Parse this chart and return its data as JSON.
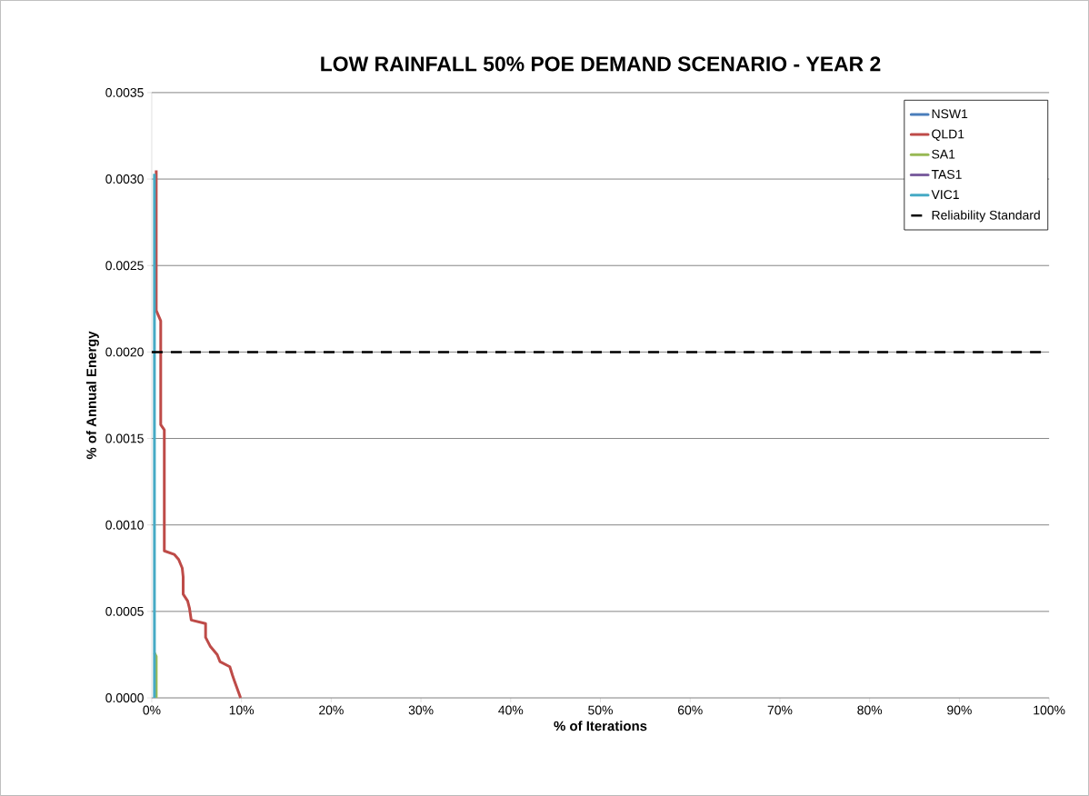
{
  "chart_data": {
    "type": "line",
    "title": "LOW RAINFALL 50% POE DEMAND SCENARIO - YEAR 2",
    "xlabel": "% of Iterations",
    "ylabel": "% of Annual Energy",
    "xlim": [
      0,
      100
    ],
    "ylim": [
      0,
      0.0035
    ],
    "xticks": [
      {
        "value": 0,
        "label": "0%"
      },
      {
        "value": 10,
        "label": "10%"
      },
      {
        "value": 20,
        "label": "20%"
      },
      {
        "value": 30,
        "label": "30%"
      },
      {
        "value": 40,
        "label": "40%"
      },
      {
        "value": 50,
        "label": "50%"
      },
      {
        "value": 60,
        "label": "60%"
      },
      {
        "value": 70,
        "label": "70%"
      },
      {
        "value": 80,
        "label": "80%"
      },
      {
        "value": 90,
        "label": "90%"
      },
      {
        "value": 100,
        "label": "100%"
      }
    ],
    "yticks": [
      {
        "value": 0,
        "label": "0.0000"
      },
      {
        "value": 0.0005,
        "label": "0.0005"
      },
      {
        "value": 0.001,
        "label": "0.0010"
      },
      {
        "value": 0.0015,
        "label": "0.0015"
      },
      {
        "value": 0.002,
        "label": "0.0020"
      },
      {
        "value": 0.0025,
        "label": "0.0025"
      },
      {
        "value": 0.003,
        "label": "0.0030"
      },
      {
        "value": 0.0035,
        "label": "0.0035"
      }
    ],
    "grid": "y",
    "legend": "top right",
    "marker": "none",
    "line_style": "solid",
    "series": [
      {
        "name": "NSW1",
        "color": "#4a7ebb"
      },
      {
        "name": "QLD1",
        "color": "#be4b48",
        "x": [
          0.5,
          0.5,
          1.0,
          1.0,
          1.4,
          1.4,
          2.5,
          3.0,
          3.4,
          3.5,
          3.5,
          4.0,
          4.2,
          4.4,
          6.0,
          6.0,
          6.5,
          7.3,
          7.6,
          8.7,
          9.0,
          9.2,
          9.9
        ],
        "values": [
          0.00305,
          0.00224,
          0.00218,
          0.00158,
          0.00155,
          0.00085,
          0.00083,
          0.0008,
          0.00075,
          0.0007,
          0.0006,
          0.00056,
          0.00052,
          0.00045,
          0.00043,
          0.00035,
          0.0003,
          0.00025,
          0.00021,
          0.00018,
          0.00013,
          0.0001,
          0
        ]
      },
      {
        "name": "SA1",
        "color": "#98b954",
        "x": [
          0.3,
          0.5,
          0.5
        ],
        "values": [
          0.00026,
          0.00024,
          0
        ]
      },
      {
        "name": "TAS1",
        "color": "#7d60a0"
      },
      {
        "name": "VIC1",
        "color": "#46aac5",
        "x": [
          0.3,
          0.3
        ],
        "values": [
          0.00303,
          0
        ]
      }
    ],
    "ref_lines": [
      {
        "axis": "y",
        "value": 0.002,
        "label": "Reliability Standard",
        "color": "#000000",
        "line_style": "dashed"
      }
    ]
  }
}
